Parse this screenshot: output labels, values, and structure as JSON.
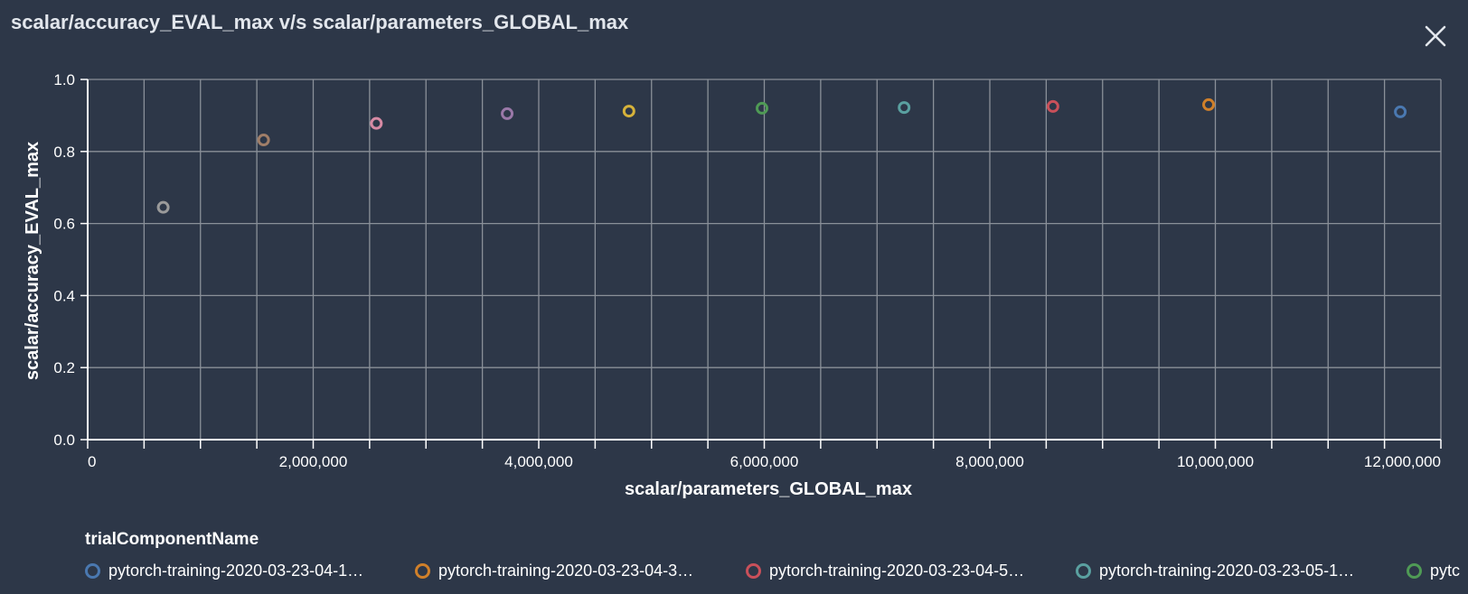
{
  "panel": {
    "title": "scalar/accuracy_EVAL_max v/s scalar/parameters_GLOBAL_max",
    "close_icon": "close-icon"
  },
  "chart_data": {
    "type": "scatter",
    "title": "",
    "xlabel": "scalar/parameters_GLOBAL_max",
    "ylabel": "scalar/accuracy_EVAL_max",
    "xlim": [
      0,
      12000000
    ],
    "ylim": [
      0,
      1.0
    ],
    "grid": true,
    "x_ticks": [
      0,
      2000000,
      4000000,
      6000000,
      8000000,
      10000000,
      12000000
    ],
    "x_tick_labels": [
      "0",
      "2,000,000",
      "4,000,000",
      "6,000,000",
      "8,000,000",
      "10,000,000",
      "12,000,000"
    ],
    "y_ticks": [
      0,
      0.2,
      0.4,
      0.6,
      0.8,
      1.0
    ],
    "y_tick_labels": [
      "0.0",
      "0.2",
      "0.4",
      "0.6",
      "0.8",
      "1.0"
    ],
    "points": [
      {
        "x": 670000,
        "y": 0.645,
        "color": "#9a9a9a"
      },
      {
        "x": 1560000,
        "y": 0.832,
        "color": "#a07e68"
      },
      {
        "x": 2560000,
        "y": 0.878,
        "color": "#d78aa4"
      },
      {
        "x": 3720000,
        "y": 0.905,
        "color": "#9a78a8"
      },
      {
        "x": 4800000,
        "y": 0.912,
        "color": "#d6b23a"
      },
      {
        "x": 5980000,
        "y": 0.92,
        "color": "#4f9a55"
      },
      {
        "x": 7240000,
        "y": 0.922,
        "color": "#5aa0a0"
      },
      {
        "x": 8560000,
        "y": 0.925,
        "color": "#c9505a"
      },
      {
        "x": 9940000,
        "y": 0.93,
        "color": "#d0802a"
      },
      {
        "x": 11640000,
        "y": 0.91,
        "color": "#4a78b0"
      }
    ],
    "legend_position": "bottom",
    "legend_title": "trialComponentName",
    "legend": [
      {
        "name": "pytorch-training-2020-03-23-04-1…",
        "color": "#4a78b0"
      },
      {
        "name": "pytorch-training-2020-03-23-04-3…",
        "color": "#d0802a"
      },
      {
        "name": "pytorch-training-2020-03-23-04-5…",
        "color": "#c9505a"
      },
      {
        "name": "pytorch-training-2020-03-23-05-1…",
        "color": "#5aa0a0"
      },
      {
        "name": "pytc",
        "color": "#4f9a55"
      }
    ]
  }
}
